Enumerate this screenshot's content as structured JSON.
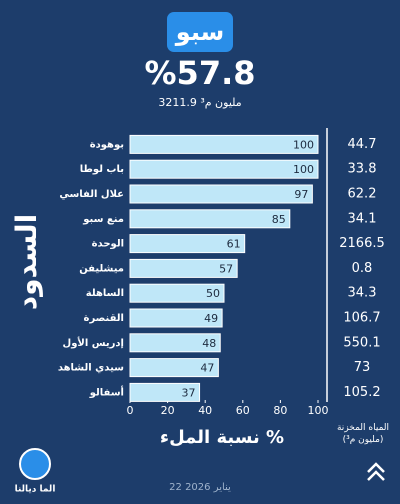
{
  "chart_data": {
    "type": "bar",
    "orientation": "horizontal",
    "title": "سبو",
    "headline": "%57.8",
    "subtitle": "3211.9 مليون م³",
    "y_label": "السدود",
    "x_label": "نسبة الملء %",
    "storage_header": "المياه المخزنة (مليون م³)",
    "categories": [
      "بوهودة",
      "باب لوطا",
      "علال الفاسي",
      "منع سبو",
      "الوحدة",
      "ميشليفن",
      "الساهلة",
      "القنصرة",
      "إدريس الأول",
      "سيدي الشاهد",
      "أسفالو"
    ],
    "values": [
      100,
      100,
      97,
      85,
      61,
      57,
      50,
      49,
      48,
      47,
      37
    ],
    "storage": [
      44.7,
      33.8,
      62.2,
      34.1,
      2166.5,
      0.8,
      34.3,
      106.7,
      550.1,
      73,
      105.2
    ],
    "color": "#bfe7f8",
    "xlim": [
      0,
      100
    ],
    "xticks": [
      0,
      20,
      40,
      60,
      80,
      100
    ]
  },
  "footer": {
    "date": "22 يناير 2026",
    "brand": "الما ديالنا"
  }
}
